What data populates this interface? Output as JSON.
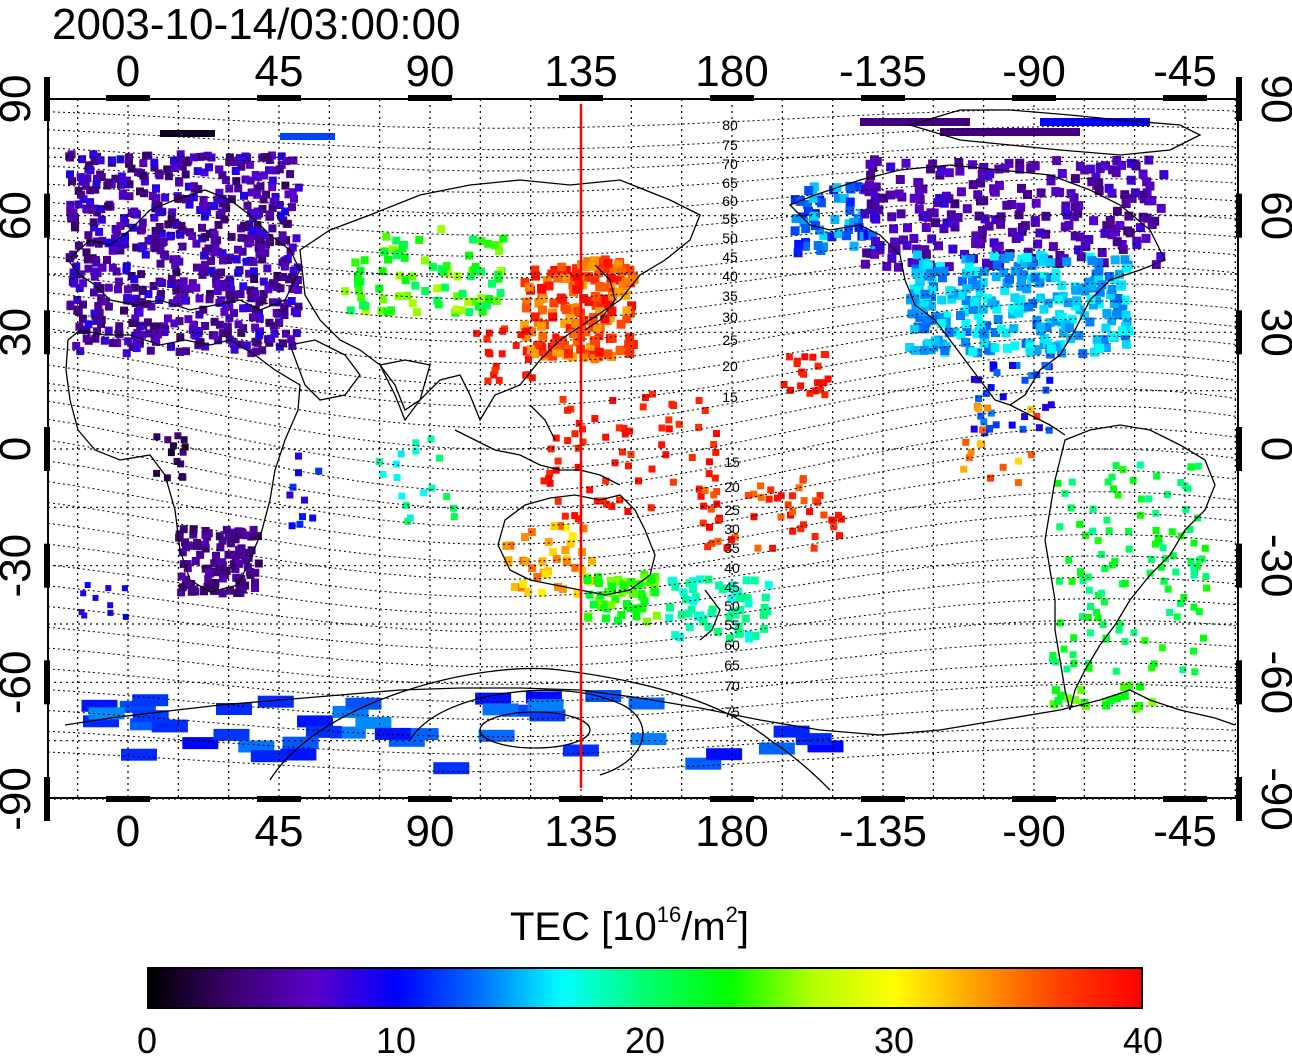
{
  "title": "2003-10-14/03:00:00",
  "map": {
    "x_ticks": [
      "0",
      "45",
      "90",
      "135",
      "180",
      "-135",
      "-90",
      "-45"
    ],
    "y_ticks": [
      "90",
      "60",
      "30",
      "0",
      "-30",
      "-60",
      "-90"
    ],
    "meridian_line_longitude": 135,
    "meridian_line_color": "#ff0000",
    "contour_labels_north": [
      "80",
      "75",
      "70",
      "65",
      "60",
      "55",
      "50",
      "45",
      "40",
      "35",
      "30",
      "25",
      "20",
      "15"
    ],
    "contour_labels_south": [
      "15",
      "20",
      "25",
      "30",
      "35",
      "40",
      "45",
      "50",
      "55",
      "60",
      "65",
      "70",
      "75"
    ]
  },
  "colorbar": {
    "title_main": "TEC  [10",
    "title_exp": "16",
    "title_mid": "/m",
    "title_exp2": "2",
    "title_end": "]",
    "tick_labels": [
      "0",
      "10",
      "20",
      "30",
      "40"
    ],
    "range": [
      0,
      40
    ],
    "colors": [
      "#000000",
      "#3b006e",
      "#5a00c8",
      "#0000ff",
      "#0070ff",
      "#00ffff",
      "#00ff70",
      "#00ff00",
      "#b0ff00",
      "#ffff00",
      "#ffa000",
      "#ff4000",
      "#ff0000"
    ]
  }
}
